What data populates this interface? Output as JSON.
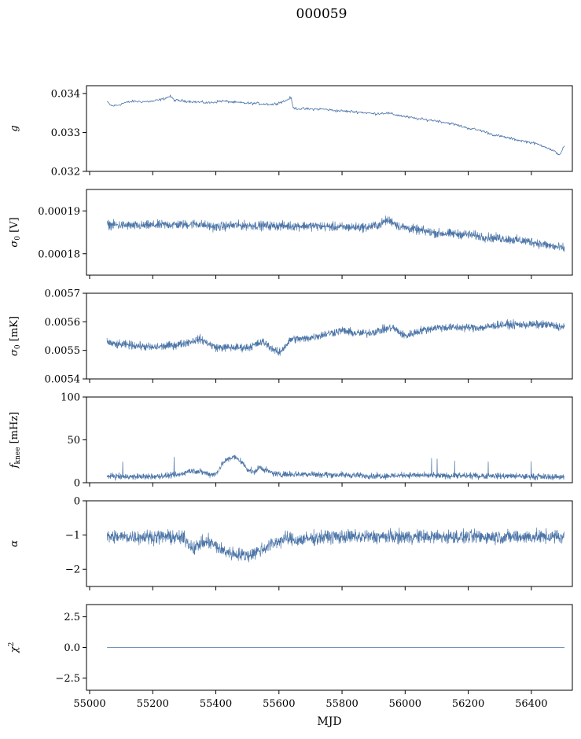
{
  "figure": {
    "title": "000059",
    "xlabel": "MJD",
    "x_ticks": [
      "55000",
      "55200",
      "55400",
      "55600",
      "55800",
      "56000",
      "56200",
      "56400"
    ]
  },
  "colors": {
    "series": "#4c75a8"
  },
  "chart_data": [
    {
      "type": "line",
      "ylabel": "g",
      "ylim": [
        0.032,
        0.0342
      ],
      "xlim": [
        54990,
        56530
      ],
      "y_ticks": [
        "0.032",
        "0.033",
        "0.034"
      ],
      "x": [
        55055,
        55070,
        55090,
        55110,
        55140,
        55170,
        55200,
        55230,
        55255,
        55270,
        55300,
        55340,
        55380,
        55420,
        55460,
        55500,
        55540,
        55580,
        55620,
        55638,
        55645,
        55660,
        55700,
        55740,
        55780,
        55820,
        55860,
        55900,
        55940,
        55980,
        56010,
        56050,
        56100,
        56150,
        56200,
        56240,
        56280,
        56320,
        56360,
        56400,
        56440,
        56470,
        56490,
        56505
      ],
      "values": [
        0.03378,
        0.03368,
        0.0337,
        0.03376,
        0.0338,
        0.03379,
        0.0338,
        0.03385,
        0.03393,
        0.03382,
        0.03381,
        0.03378,
        0.03376,
        0.03381,
        0.03377,
        0.03375,
        0.03374,
        0.03372,
        0.03381,
        0.0339,
        0.03363,
        0.03361,
        0.0336,
        0.0336,
        0.03356,
        0.03354,
        0.03352,
        0.03348,
        0.0335,
        0.03344,
        0.03339,
        0.03334,
        0.0333,
        0.03322,
        0.03311,
        0.03305,
        0.03294,
        0.03287,
        0.0328,
        0.03274,
        0.03265,
        0.03252,
        0.03243,
        0.03266
      ],
      "noise": 3e-05
    },
    {
      "type": "line",
      "ylabel": "σ0 [V]",
      "ylim": [
        0.000175,
        0.000195
      ],
      "xlim": [
        54990,
        56530
      ],
      "y_ticks": [
        "0.00018",
        "0.00019"
      ],
      "x": [
        55055,
        55150,
        55250,
        55300,
        55340,
        55400,
        55450,
        55500,
        55600,
        55700,
        55800,
        55880,
        55900,
        55920,
        55940,
        55960,
        55980,
        56020,
        56100,
        56200,
        56260,
        56300,
        56400,
        56450,
        56505
      ],
      "values": [
        0.0001868,
        0.0001865,
        0.0001868,
        0.0001868,
        0.000187,
        0.0001862,
        0.0001866,
        0.0001866,
        0.0001865,
        0.0001865,
        0.0001862,
        0.0001862,
        0.0001865,
        0.0001868,
        0.0001878,
        0.0001875,
        0.0001864,
        0.0001858,
        0.0001848,
        0.0001845,
        0.0001838,
        0.0001836,
        0.0001828,
        0.000182,
        0.0001812
      ],
      "noise": 9e-07
    },
    {
      "type": "line",
      "ylabel": "σ0 [mK]",
      "ylim": [
        0.0054,
        0.0057
      ],
      "xlim": [
        54990,
        56530
      ],
      "y_ticks": [
        "0.0054",
        "0.0055",
        "0.0056",
        "0.0057"
      ],
      "x": [
        55055,
        55080,
        55120,
        55200,
        55280,
        55350,
        55400,
        55450,
        55500,
        55550,
        55600,
        55640,
        55680,
        55720,
        55760,
        55800,
        55840,
        55880,
        55920,
        55960,
        56000,
        56050,
        56100,
        56150,
        56200,
        56250,
        56300,
        56350,
        56400,
        56450,
        56505
      ],
      "values": [
        0.00553,
        0.00552,
        0.00552,
        0.00551,
        0.00552,
        0.00554,
        0.00551,
        0.00551,
        0.00551,
        0.00553,
        0.00549,
        0.00554,
        0.00554,
        0.00555,
        0.00556,
        0.00557,
        0.00556,
        0.00556,
        0.00557,
        0.00558,
        0.00555,
        0.00557,
        0.00558,
        0.00558,
        0.00558,
        0.00558,
        0.00559,
        0.00559,
        0.00559,
        0.00559,
        0.00558
      ],
      "noise": 1.2e-05
    },
    {
      "type": "line",
      "ylabel": "fknee [mHz]",
      "ylim": [
        0,
        100
      ],
      "xlim": [
        54990,
        56530
      ],
      "y_ticks": [
        "0",
        "50",
        "100"
      ],
      "x": [
        55055,
        55100,
        55200,
        55280,
        55320,
        55350,
        55380,
        55400,
        55420,
        55440,
        55460,
        55480,
        55500,
        55520,
        55540,
        55560,
        55580,
        55600,
        55700,
        55800,
        55900,
        55950,
        56000,
        56100,
        56200,
        56300,
        56400,
        56505
      ],
      "values": [
        8,
        7,
        7,
        9,
        14,
        13,
        10,
        10,
        22,
        28,
        30,
        25,
        16,
        12,
        18,
        14,
        11,
        10,
        10,
        9,
        8,
        8,
        9,
        8,
        8,
        8,
        7,
        7
      ],
      "noise": 3
    },
    {
      "type": "line",
      "ylabel": "α",
      "ylim": [
        -2.5,
        0
      ],
      "xlim": [
        54990,
        56530
      ],
      "y_ticks": [
        "0",
        "−1",
        "−2"
      ],
      "x": [
        55055,
        55150,
        55250,
        55300,
        55330,
        55350,
        55380,
        55420,
        55460,
        55500,
        55540,
        55580,
        55620,
        55660,
        55700,
        55750,
        55800,
        55850,
        55900,
        56000,
        56100,
        56200,
        56300,
        56400,
        56505
      ],
      "values": [
        -1.05,
        -1.05,
        -1.05,
        -1.1,
        -1.4,
        -1.25,
        -1.2,
        -1.45,
        -1.55,
        -1.6,
        -1.45,
        -1.25,
        -1.1,
        -1.15,
        -1.1,
        -1.05,
        -1.05,
        -1.05,
        -1.05,
        -1.05,
        -1.05,
        -1.05,
        -1.05,
        -1.05,
        -1.05
      ],
      "noise": 0.17
    },
    {
      "type": "line",
      "ylabel": "χ2",
      "ylim": [
        -3.5,
        3.5
      ],
      "xlim": [
        54990,
        56530
      ],
      "y_ticks": [
        "−2.5",
        "0.0",
        "2.5"
      ],
      "x": [
        55055,
        56505
      ],
      "values": [
        0,
        0
      ],
      "noise": 0
    }
  ]
}
